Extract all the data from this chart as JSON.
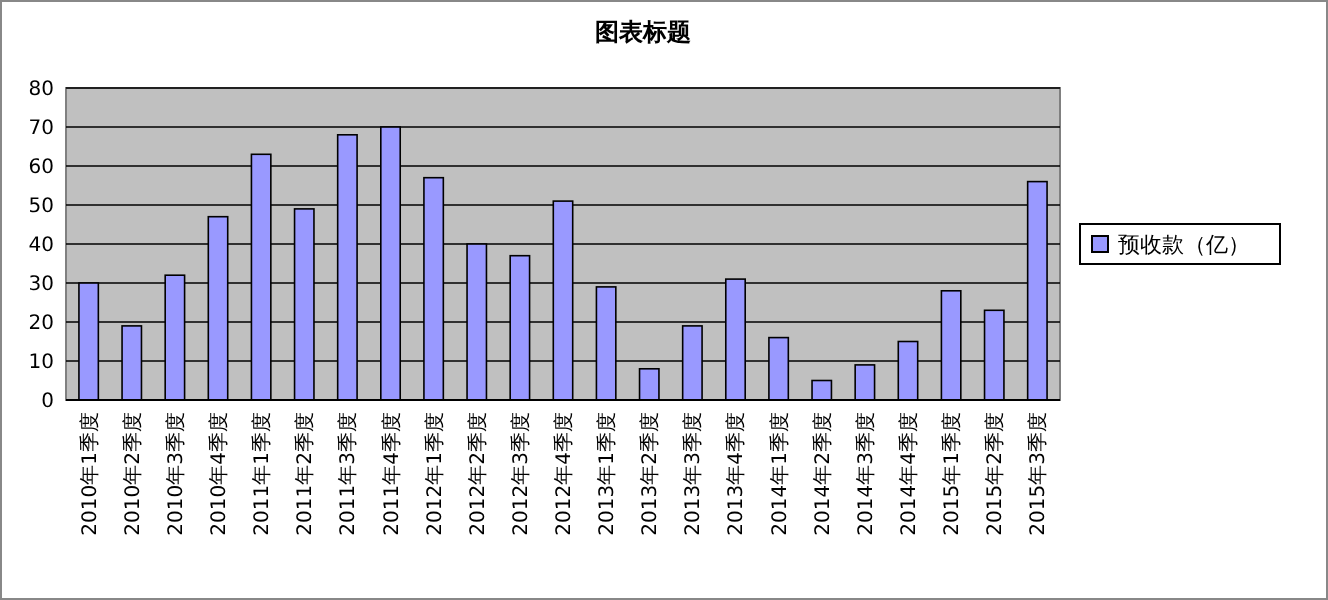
{
  "chart_data": {
    "type": "bar",
    "title": "图表标题",
    "categories": [
      "2010年1季度",
      "2010年2季度",
      "2010年3季度",
      "2010年4季度",
      "2011年1季度",
      "2011年2季度",
      "2011年3季度",
      "2011年4季度",
      "2012年1季度",
      "2012年2季度",
      "2012年3季度",
      "2012年4季度",
      "2013年1季度",
      "2013年2季度",
      "2013年3季度",
      "2013年4季度",
      "2014年1季度",
      "2014年2季度",
      "2014年3季度",
      "2014年4季度",
      "2015年1季度",
      "2015年2季度",
      "2015年3季度"
    ],
    "series": [
      {
        "name": "预收款（亿）",
        "color": "#9999ff",
        "values": [
          30,
          19,
          32,
          47,
          63,
          49,
          68,
          70,
          57,
          40,
          37,
          51,
          29,
          8,
          19,
          31,
          16,
          5,
          9,
          15,
          28,
          23,
          56
        ]
      }
    ],
    "ylim": [
      0,
      80
    ],
    "yticks": [
      0,
      10,
      20,
      30,
      40,
      50,
      60,
      70,
      80
    ],
    "grid": "y",
    "legend": "right"
  }
}
